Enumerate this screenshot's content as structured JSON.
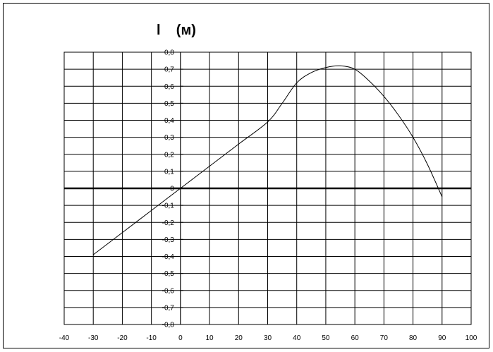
{
  "chart_data": {
    "type": "line",
    "title": "l    (м)",
    "xlabel": "",
    "ylabel": "",
    "xlim": [
      -40,
      100
    ],
    "ylim": [
      -0.8,
      0.8
    ],
    "x_ticks": [
      "-40",
      "-30",
      "-20",
      "-10",
      "0",
      "10",
      "20",
      "30",
      "40",
      "50",
      "60",
      "70",
      "80",
      "90",
      "100"
    ],
    "y_ticks": [
      "0,8",
      "0,7",
      "0,6",
      "0,5",
      "0,4",
      "0,3",
      "0,2",
      "0,1",
      "0",
      "-0,1",
      "-0,2",
      "-0,3",
      "-0,4",
      "-0,5",
      "-0,6",
      "-0,7",
      "-0,8"
    ],
    "grid": true,
    "series": [
      {
        "x": [
          -30,
          -20,
          -10,
          0,
          10,
          20,
          30,
          35,
          40,
          45,
          50,
          55,
          60,
          65,
          70,
          75,
          80,
          85,
          90
        ],
        "y": [
          -0.39,
          -0.26,
          -0.13,
          0.0,
          0.13,
          0.26,
          0.39,
          0.5,
          0.62,
          0.68,
          0.71,
          0.72,
          0.7,
          0.63,
          0.54,
          0.43,
          0.3,
          0.14,
          -0.05
        ]
      }
    ],
    "line_color": "#000000"
  }
}
